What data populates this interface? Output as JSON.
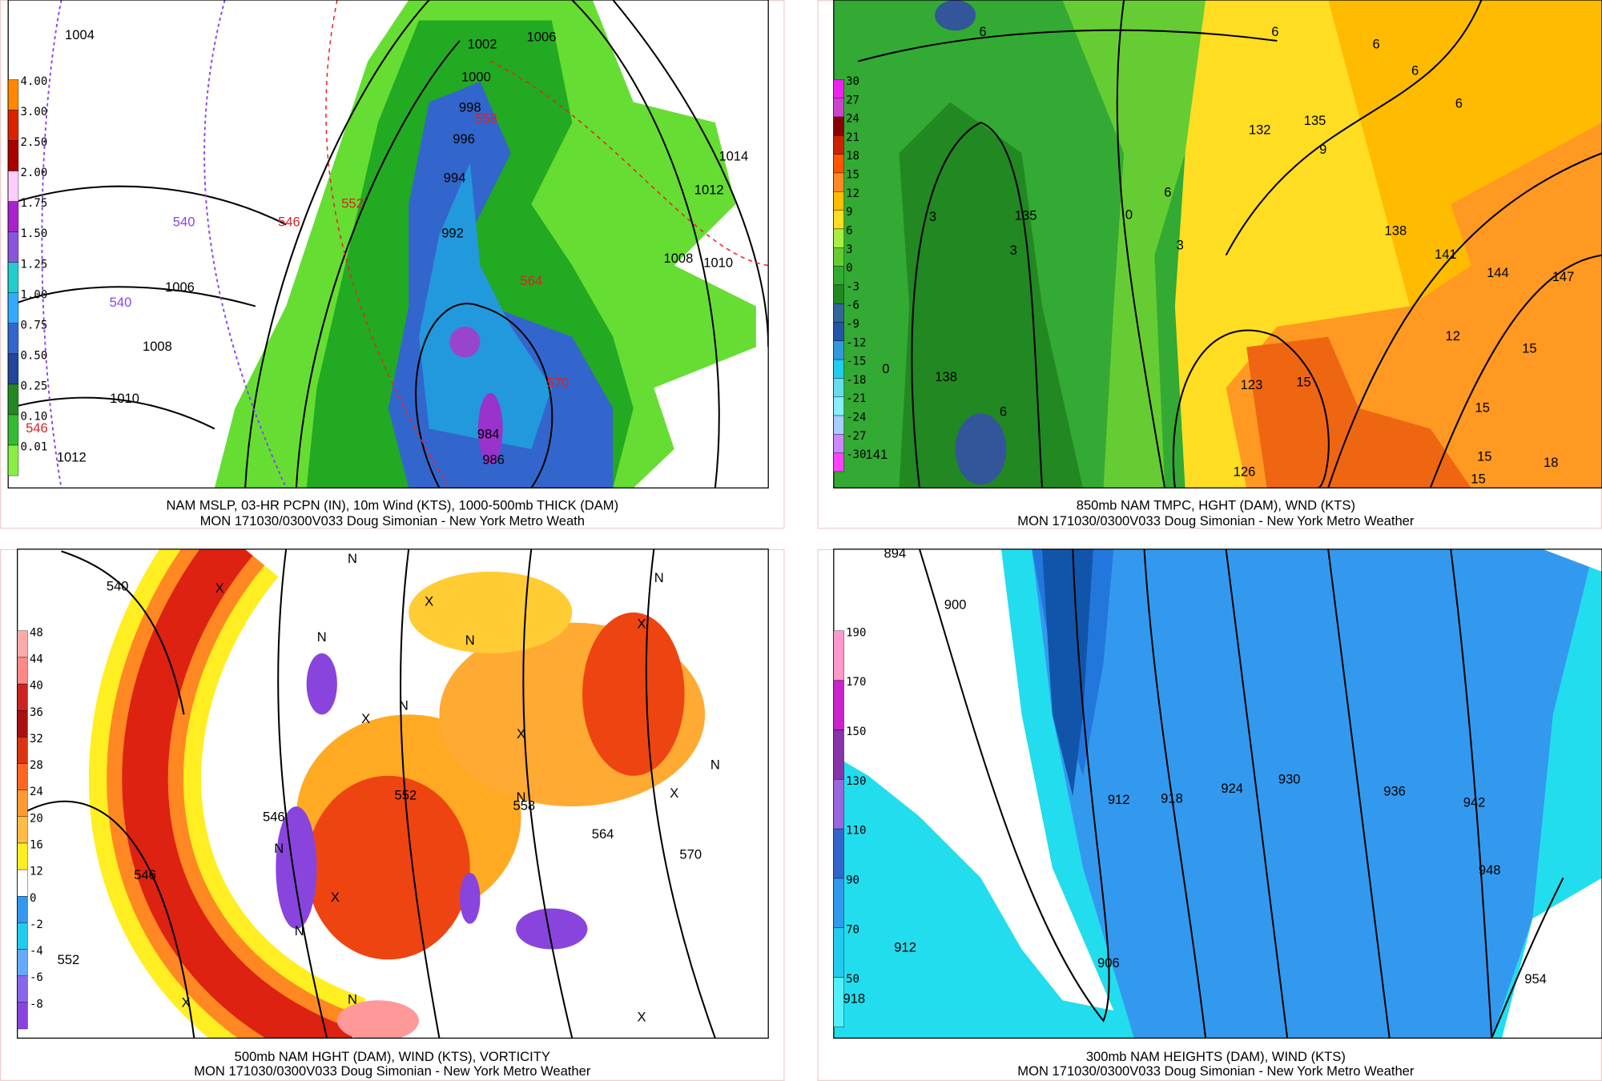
{
  "panels": [
    {
      "caption": [
        "NAM MSLP, 03-HR PCPN (IN), 10m Wind (KTS), 1000-500mb THICK (DAM)",
        "MON 171030/0300V033 Doug Simonian - New York Metro Weath"
      ],
      "colorbar": [
        "4.00",
        "3.00",
        "2.50",
        "2.00",
        "1.75",
        "1.50",
        "1.25",
        "1.00",
        "0.75",
        "0.50",
        "0.25",
        "0.10",
        "0.01"
      ],
      "contour_labels": [
        "1004",
        "1002",
        "1006",
        "1000",
        "998",
        "558",
        "996",
        "994",
        "992",
        "1014",
        "1012",
        "1008",
        "1010",
        "1006",
        "540",
        "540",
        "546",
        "552",
        "564",
        "1008",
        "1010",
        "1012",
        "546",
        "570",
        "984",
        "986"
      ]
    },
    {
      "caption": [
        "850mb NAM TMPC, HGHT (DAM), WND (KTS)",
        "MON 171030/0300V033 Doug Simonian - New York Metro Weather"
      ],
      "colorbar": [
        "30",
        "27",
        "24",
        "21",
        "18",
        "15",
        "12",
        "9",
        "6",
        "3",
        "0",
        "-3",
        "-6",
        "-9",
        "-12",
        "-15",
        "-18",
        "-21",
        "-24",
        "-27",
        "-30"
      ],
      "contour_labels": [
        "6",
        "6",
        "6",
        "6",
        "6",
        "132",
        "135",
        "9",
        "135",
        "3",
        "3",
        "0",
        "6",
        "3",
        "138",
        "141",
        "144",
        "147",
        "12",
        "15",
        "0",
        "138",
        "6",
        "123",
        "15",
        "15",
        "15",
        "15",
        "18",
        "126",
        "141"
      ]
    },
    {
      "caption": [
        "500mb NAM HGHT (DAM), WIND (KTS), VORTICITY",
        "MON 171030/0300V033 Doug Simonian - New York Metro Weather"
      ],
      "colorbar": [
        "48",
        "44",
        "40",
        "36",
        "32",
        "28",
        "24",
        "20",
        "16",
        "12",
        "0",
        "-2",
        "-4",
        "-6",
        "-8"
      ],
      "contour_labels": [
        "540",
        "546",
        "552",
        "558",
        "564",
        "570",
        "546",
        "552",
        "X",
        "N",
        "N",
        "X",
        "N",
        "X",
        "N",
        "X",
        "N",
        "X",
        "N",
        "N",
        "X",
        "N",
        "X",
        "N",
        "X",
        "N",
        "X"
      ]
    },
    {
      "caption": [
        "300mb NAM HEIGHTS (DAM), WIND (KTS)",
        "MON 171030/0300V033 Doug Simonian - New York Metro Weather"
      ],
      "colorbar": [
        "190",
        "170",
        "150",
        "130",
        "110",
        "90",
        "70",
        "50"
      ],
      "contour_labels": [
        "894",
        "900",
        "912",
        "918",
        "924",
        "930",
        "936",
        "942",
        "948",
        "954",
        "912",
        "906",
        "918"
      ]
    }
  ]
}
